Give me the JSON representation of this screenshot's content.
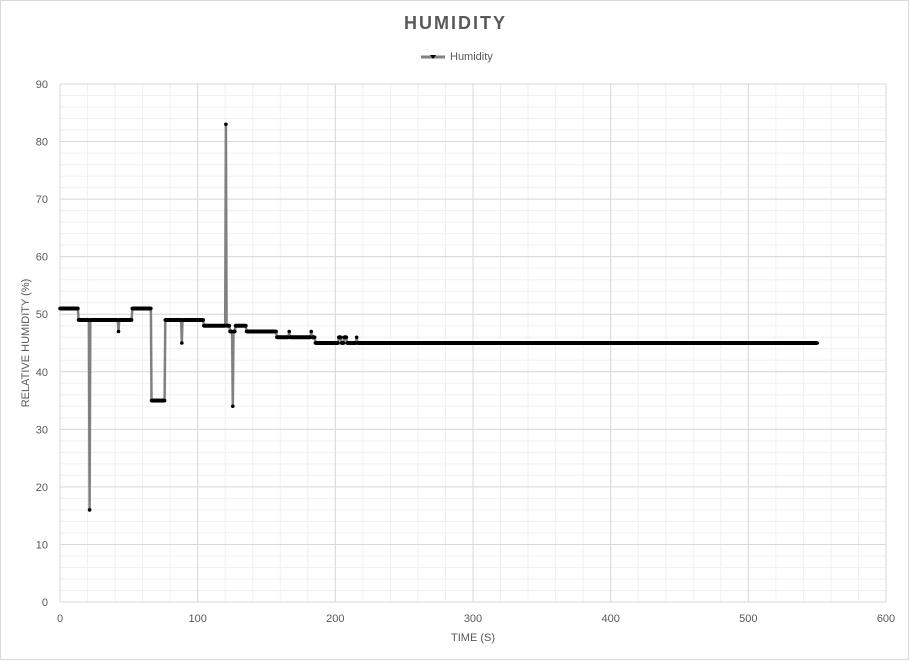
{
  "chart_data": {
    "type": "line",
    "title": "HUMIDITY",
    "xlabel": "TIME (S)",
    "ylabel": "RELATIVE HUMIDITY (%)",
    "xlim": [
      0,
      600
    ],
    "ylim": [
      0,
      90
    ],
    "x_ticks": [
      0,
      100,
      200,
      300,
      400,
      500,
      600
    ],
    "y_ticks": [
      0,
      10,
      20,
      30,
      40,
      50,
      60,
      70,
      80,
      90
    ],
    "grid": true,
    "legend": "top-center",
    "series": [
      {
        "name": "Humidity",
        "color": "#000000",
        "line_color": "#808080",
        "points": [
          [
            0,
            51
          ],
          [
            13,
            51
          ],
          [
            13.5,
            49
          ],
          [
            21,
            49
          ],
          [
            21.5,
            16
          ],
          [
            22,
            49
          ],
          [
            42,
            49
          ],
          [
            42.5,
            47
          ],
          [
            43,
            49
          ],
          [
            52,
            49
          ],
          [
            52.5,
            51
          ],
          [
            66,
            51
          ],
          [
            66.5,
            35
          ],
          [
            76,
            35
          ],
          [
            76.5,
            49
          ],
          [
            88,
            49
          ],
          [
            88.5,
            45
          ],
          [
            89,
            49
          ],
          [
            104,
            49
          ],
          [
            104.5,
            48
          ],
          [
            120,
            48
          ],
          [
            120.5,
            83
          ],
          [
            121,
            48
          ],
          [
            123,
            48
          ],
          [
            123.5,
            47
          ],
          [
            125,
            47
          ],
          [
            125.5,
            34
          ],
          [
            126,
            47
          ],
          [
            127,
            47
          ],
          [
            127.5,
            48
          ],
          [
            135,
            48
          ],
          [
            135.5,
            47
          ],
          [
            157,
            47
          ],
          [
            157.5,
            46
          ],
          [
            166,
            46
          ],
          [
            166.5,
            47
          ],
          [
            167,
            46
          ],
          [
            182,
            46
          ],
          [
            182.5,
            47
          ],
          [
            183,
            46
          ],
          [
            185,
            46
          ],
          [
            185.5,
            45
          ],
          [
            202,
            45
          ],
          [
            202.5,
            46
          ],
          [
            204,
            46
          ],
          [
            204.5,
            45
          ],
          [
            206,
            45
          ],
          [
            206.5,
            46
          ],
          [
            208,
            46
          ],
          [
            208.5,
            45
          ],
          [
            215,
            45
          ],
          [
            215.5,
            46
          ],
          [
            216,
            45
          ],
          [
            550,
            45
          ]
        ]
      }
    ]
  }
}
